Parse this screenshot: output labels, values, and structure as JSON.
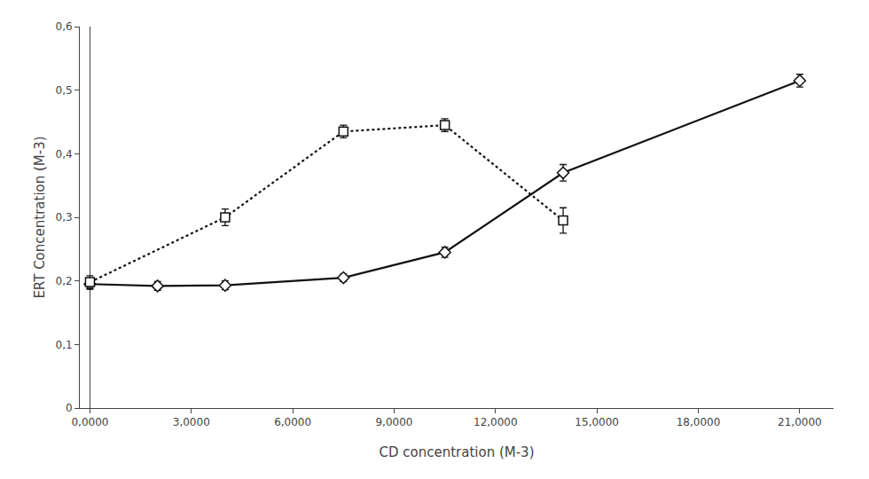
{
  "chart_data": {
    "type": "line",
    "x_label": "CD concentration (M-3)",
    "y_label": "ERT Concentration (M-3)",
    "series": [
      {
        "x": [
          0,
          2,
          4,
          7.5,
          10.5,
          14,
          21
        ],
        "values": [
          0.195,
          0.192,
          0.193,
          0.205,
          0.245,
          0.37,
          0.515
        ],
        "yerr": [
          0.008,
          0.007,
          0.007,
          0.006,
          0.008,
          0.013,
          0.01
        ],
        "color": "#111111",
        "marker": "diamond",
        "line_style": "solid"
      },
      {
        "x": [
          0,
          4,
          7.5,
          10.5,
          14
        ],
        "values": [
          0.198,
          0.3,
          0.435,
          0.445,
          0.295
        ],
        "yerr": [
          0.01,
          0.013,
          0.01,
          0.01,
          0.02
        ],
        "color": "#111111",
        "marker": "square",
        "line_style": "dotted"
      }
    ],
    "xlim": [
      -0.3,
      22
    ],
    "ylim": [
      0,
      0.6
    ],
    "xticks": [
      {
        "value": 0,
        "label": "0,0000"
      },
      {
        "value": 3,
        "label": "3,0000"
      },
      {
        "value": 6,
        "label": "6,0000"
      },
      {
        "value": 9,
        "label": "9,0000"
      },
      {
        "value": 12,
        "label": "12,0000"
      },
      {
        "value": 15,
        "label": "15,0000"
      },
      {
        "value": 18,
        "label": "18,0000"
      },
      {
        "value": 21,
        "label": "21,0000"
      }
    ],
    "yticks": [
      0,
      {
        "value": 0.1,
        "label": "0,1"
      },
      {
        "value": 0.2,
        "label": "0,2"
      },
      {
        "value": 0.3,
        "label": "0,3"
      },
      {
        "value": 0.4,
        "label": "0,4"
      },
      {
        "value": 0.5,
        "label": "0,5"
      },
      {
        "value": 0.6,
        "label": "0,6"
      }
    ],
    "grid": false
  }
}
